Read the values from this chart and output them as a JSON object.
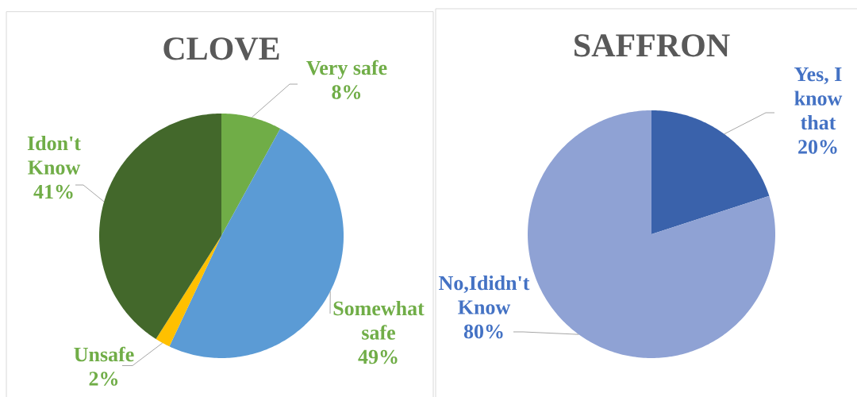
{
  "chart_data": [
    {
      "type": "pie",
      "title": "CLOVE",
      "categories": [
        "Very safe",
        "Somewhat safe",
        "Unsafe",
        "Idon't Know"
      ],
      "values": [
        8,
        49,
        2,
        41
      ],
      "colors": [
        "#70ad47",
        "#5b9bd5",
        "#ffc000",
        "#43682b"
      ],
      "value_labels": [
        "8%",
        "49%",
        "2%",
        "41%"
      ]
    },
    {
      "type": "pie",
      "title": "SAFFRON",
      "categories": [
        "Yes, I know that",
        "No,Ididn't Know"
      ],
      "values": [
        20,
        80
      ],
      "colors": [
        "#3a62ab",
        "#8fa2d4"
      ],
      "value_labels": [
        "20%",
        "80%"
      ]
    }
  ]
}
